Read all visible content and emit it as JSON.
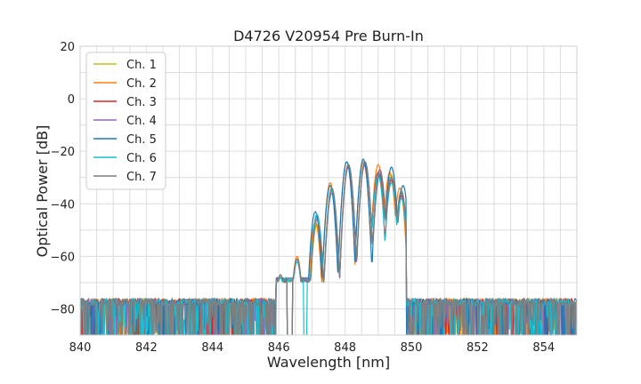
{
  "chart_data": {
    "type": "line",
    "title": "D4726 V20954 Pre Burn-In",
    "xlabel": "Wavelength [nm]",
    "ylabel": "Optical Power [dB]",
    "xlim": [
      840,
      855
    ],
    "ylim": [
      -90,
      20
    ],
    "x_ticks": [
      840,
      842,
      844,
      846,
      848,
      850,
      852,
      854
    ],
    "y_ticks": [
      20,
      0,
      -20,
      -40,
      -60,
      -80
    ],
    "x_tick_labels": [
      "840",
      "842",
      "844",
      "846",
      "848",
      "850",
      "852",
      "854"
    ],
    "y_tick_labels": [
      "20",
      "0",
      "−20",
      "−40",
      "−60",
      "−80"
    ],
    "grid": true,
    "legend_position": "top-left",
    "noise_floor_db": -76,
    "series": [
      {
        "name": "Ch. 1",
        "color": "#bcbd22",
        "peaks": [
          [
            846.05,
            -67
          ],
          [
            846.55,
            -61
          ],
          [
            847.15,
            -48
          ],
          [
            847.6,
            -34
          ],
          [
            848.1,
            -25
          ],
          [
            848.6,
            -24
          ],
          [
            849.05,
            -27
          ],
          [
            849.4,
            -29
          ],
          [
            849.7,
            -35
          ]
        ]
      },
      {
        "name": "Ch. 2",
        "color": "#ff7f0e",
        "peaks": [
          [
            846.05,
            -67
          ],
          [
            846.55,
            -60
          ],
          [
            847.1,
            -47
          ],
          [
            847.55,
            -32
          ],
          [
            848.05,
            -24
          ],
          [
            848.55,
            -24
          ],
          [
            849.0,
            -25
          ],
          [
            849.35,
            -28
          ],
          [
            849.65,
            -34
          ]
        ]
      },
      {
        "name": "Ch. 3",
        "color": "#d62728",
        "peaks": [
          [
            846.05,
            -68
          ],
          [
            846.55,
            -61
          ],
          [
            847.15,
            -46
          ],
          [
            847.6,
            -35
          ],
          [
            848.1,
            -26
          ],
          [
            848.6,
            -24
          ],
          [
            849.0,
            -28
          ],
          [
            849.4,
            -31
          ],
          [
            849.7,
            -37
          ]
        ]
      },
      {
        "name": "Ch. 4",
        "color": "#9467bd",
        "peaks": [
          [
            846.05,
            -68
          ],
          [
            846.55,
            -62
          ],
          [
            847.15,
            -45
          ],
          [
            847.6,
            -36
          ],
          [
            848.1,
            -26
          ],
          [
            848.6,
            -25
          ],
          [
            849.05,
            -27
          ],
          [
            849.4,
            -30
          ],
          [
            849.7,
            -36
          ]
        ]
      },
      {
        "name": "Ch. 5",
        "color": "#1f77b4",
        "peaks": [
          [
            846.05,
            -67
          ],
          [
            846.55,
            -61
          ],
          [
            847.1,
            -43
          ],
          [
            847.55,
            -33
          ],
          [
            848.05,
            -24
          ],
          [
            848.55,
            -23
          ],
          [
            849.05,
            -29
          ],
          [
            849.4,
            -26
          ],
          [
            849.75,
            -33
          ]
        ]
      },
      {
        "name": "Ch. 6",
        "color": "#17becf",
        "peaks": [
          [
            846.05,
            -68
          ],
          [
            846.55,
            -62
          ],
          [
            847.15,
            -44
          ],
          [
            847.6,
            -35
          ],
          [
            848.1,
            -25
          ],
          [
            848.6,
            -24
          ],
          [
            849.0,
            -29
          ],
          [
            849.4,
            -32
          ],
          [
            849.7,
            -38
          ]
        ]
      },
      {
        "name": "Ch. 7",
        "color": "#7f7f7f",
        "peaks": [
          [
            846.05,
            -67
          ],
          [
            846.55,
            -61
          ],
          [
            847.15,
            -46
          ],
          [
            847.6,
            -34
          ],
          [
            848.1,
            -25
          ],
          [
            848.6,
            -24
          ],
          [
            849.05,
            -28
          ],
          [
            849.4,
            -30
          ],
          [
            849.7,
            -35
          ]
        ]
      }
    ]
  }
}
